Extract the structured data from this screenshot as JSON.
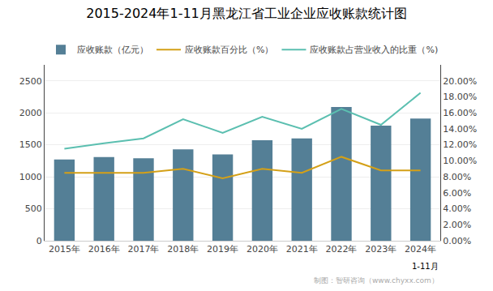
{
  "chart_data": {
    "type": "bar",
    "title": "2015-2024年1-11月黑龙江省工业企业应收账款统计图",
    "categories": [
      "2015年",
      "2016年",
      "2017年",
      "2018年",
      "2019年",
      "2020年",
      "2021年",
      "2022年",
      "2023年",
      "2024年"
    ],
    "series": [
      {
        "name": "应收账款（亿元）",
        "type": "bar",
        "color": "#547f96",
        "values": [
          1270,
          1310,
          1290,
          1430,
          1350,
          1570,
          1600,
          2090,
          1800,
          1910
        ]
      },
      {
        "name": "应收账款百分比（%）",
        "type": "line",
        "axis": "y2",
        "color": "#d4a017",
        "values": [
          8.5,
          8.5,
          8.5,
          9.0,
          7.8,
          9.0,
          8.5,
          10.5,
          8.8,
          8.8
        ]
      },
      {
        "name": "应收账款占营业收入的比重（%)",
        "type": "line",
        "axis": "y2",
        "color": "#5bbfb0",
        "values": [
          11.5,
          12.2,
          12.8,
          15.2,
          13.5,
          15.5,
          14.0,
          16.5,
          14.5,
          18.5
        ]
      }
    ],
    "ylim": [
      0,
      2750
    ],
    "yticks": [
      0,
      500,
      1000,
      1500,
      2000,
      2500
    ],
    "y2lim": [
      0,
      22
    ],
    "y2ticks": [
      {
        "value": 0,
        "label": "0.00%"
      },
      {
        "value": 2,
        "label": "2.00%"
      },
      {
        "value": 4,
        "label": "4.00%"
      },
      {
        "value": 6,
        "label": "6.00%"
      },
      {
        "value": 8,
        "label": "8.00%"
      },
      {
        "value": 10,
        "label": "10.00%"
      },
      {
        "value": 12,
        "label": "12.00%"
      },
      {
        "value": 14,
        "label": "14.00%"
      },
      {
        "value": 16,
        "label": "16.00%"
      },
      {
        "value": 18,
        "label": "18.00%"
      },
      {
        "value": 20,
        "label": "20.00%"
      }
    ],
    "annotations": [
      "1-11月",
      "制图：智研咨询（www.chyxx.com）"
    ],
    "grid": true,
    "legend": "upper left"
  }
}
